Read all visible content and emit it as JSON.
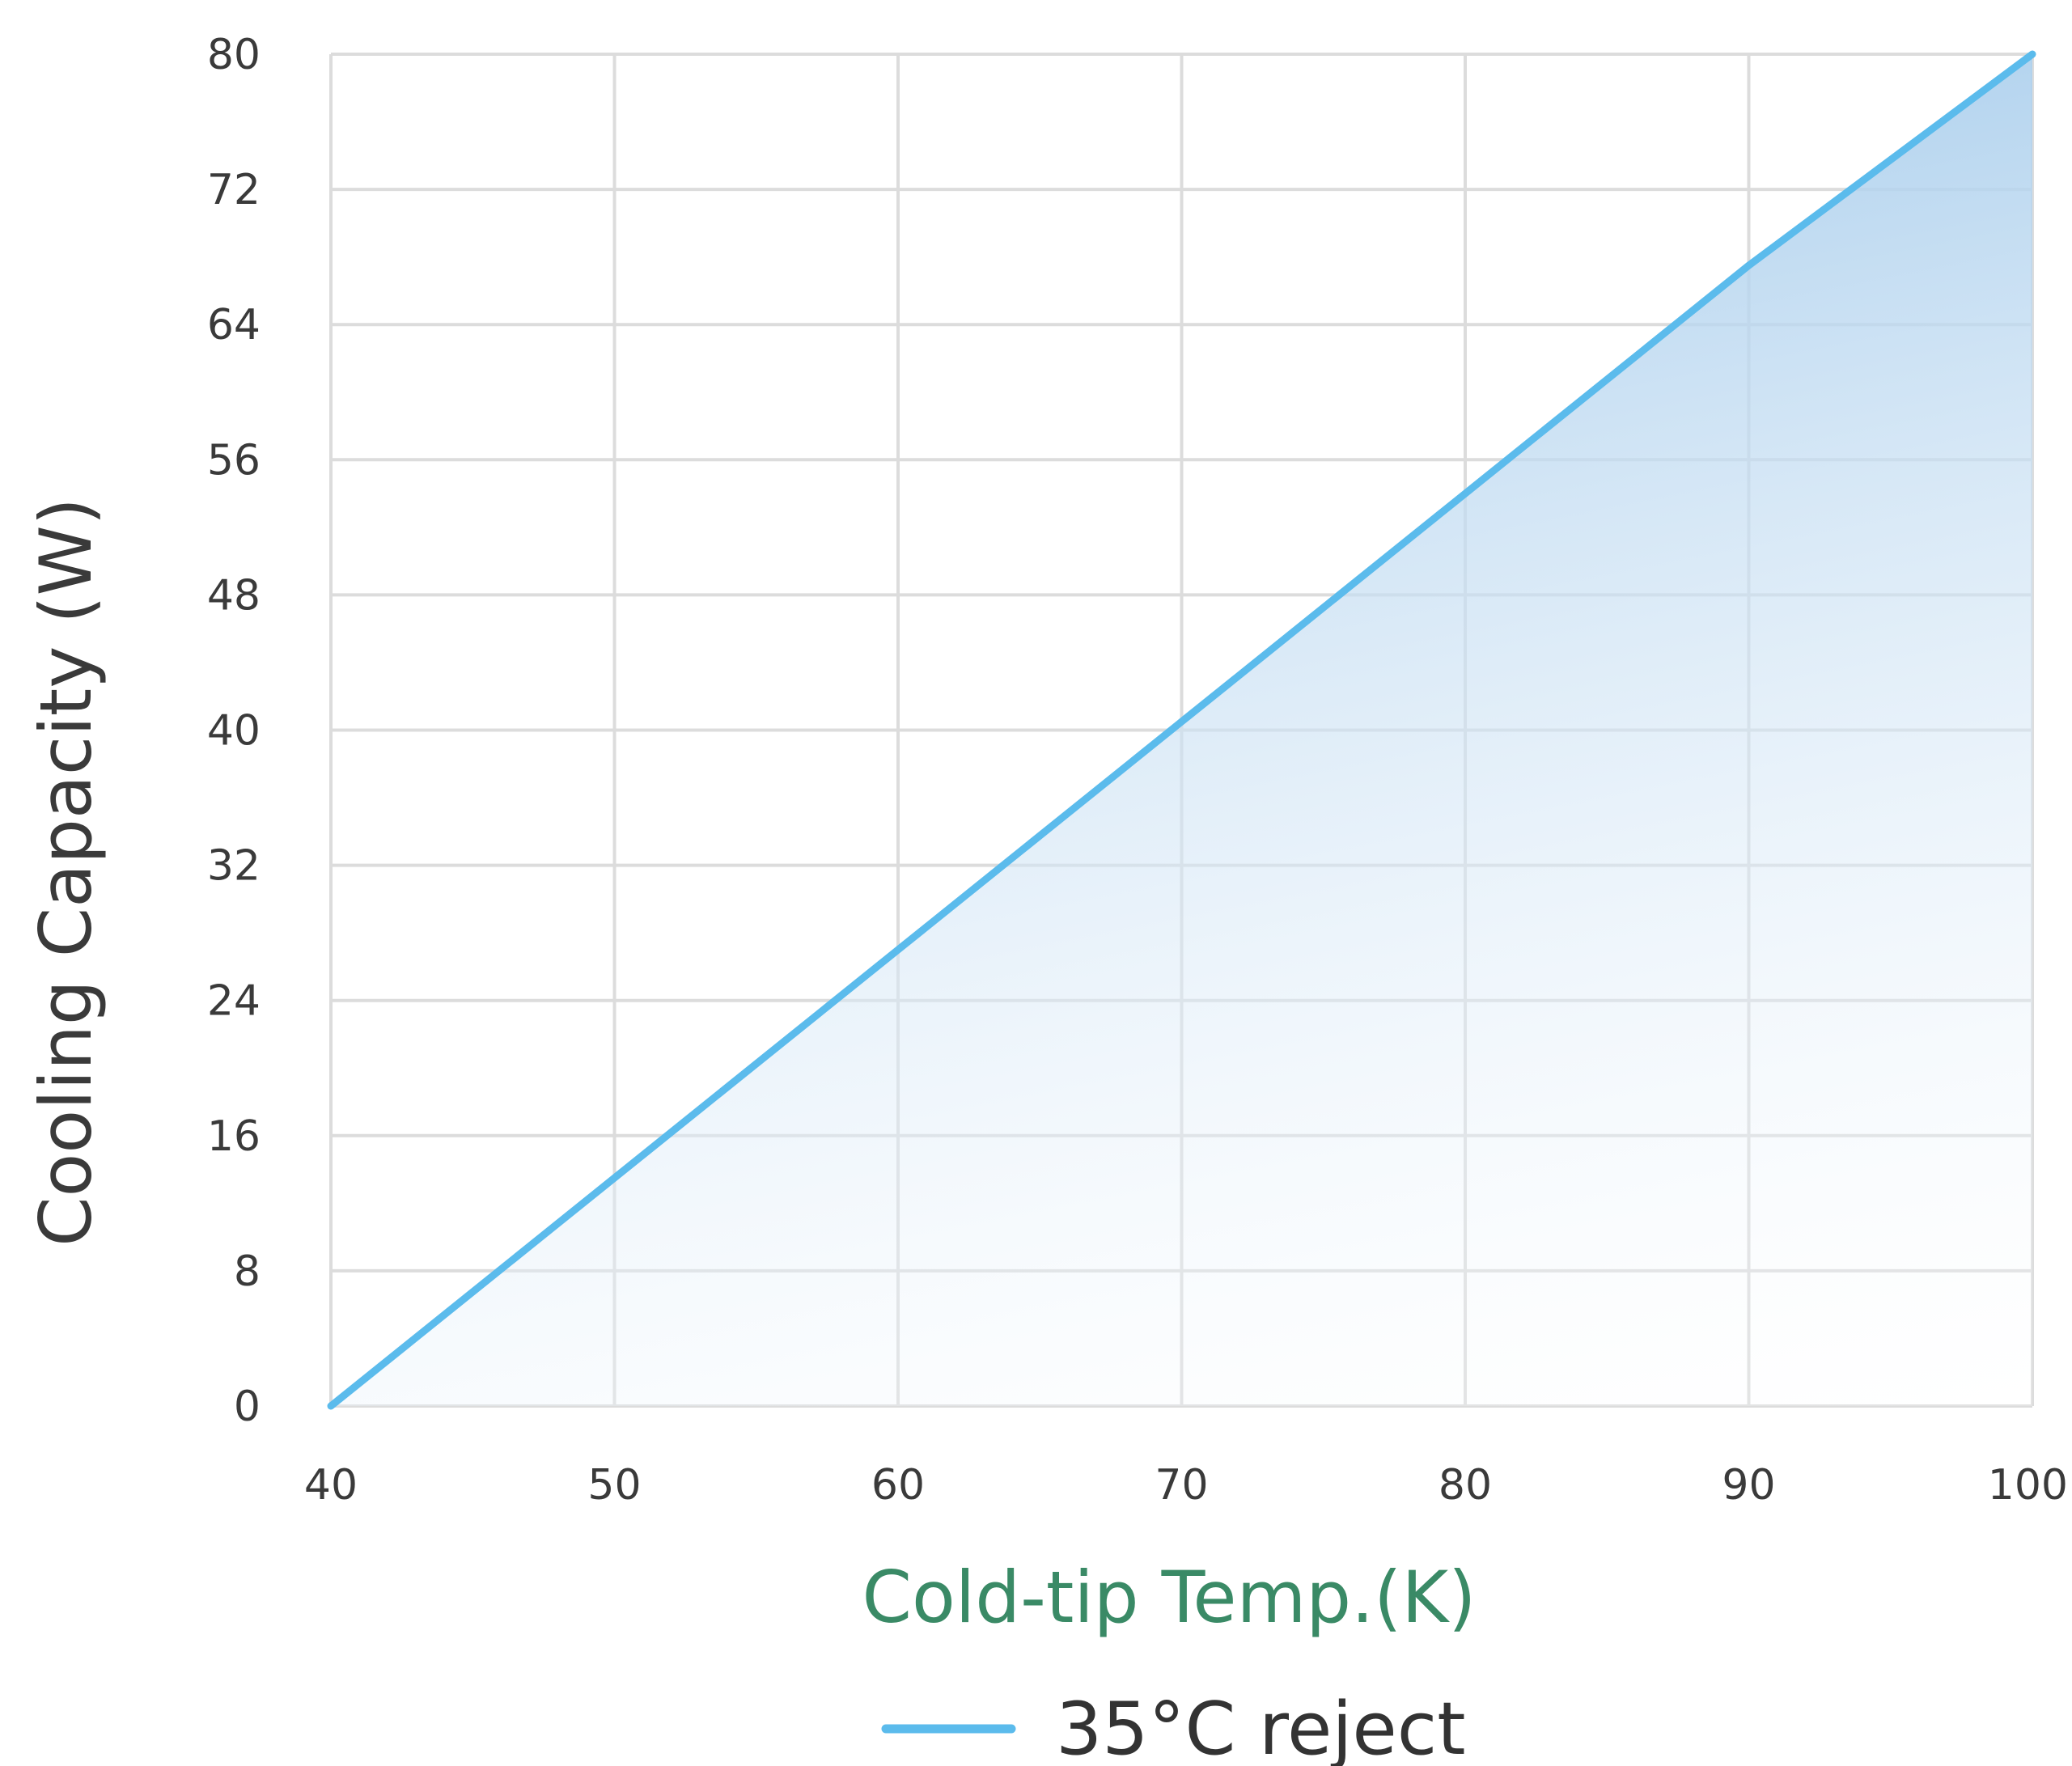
{
  "chart_data": {
    "type": "area",
    "xlabel": "Cold-tip Temp.(K)",
    "ylabel": "Cooling Capacity (W)",
    "xlim": [
      40,
      100
    ],
    "ylim": [
      0,
      80
    ],
    "x_ticks": [
      "40",
      "50",
      "60",
      "70",
      "80",
      "90",
      "100"
    ],
    "y_ticks": [
      "0",
      "8",
      "16",
      "24",
      "32",
      "40",
      "48",
      "56",
      "64",
      "72",
      "80"
    ],
    "grid": true,
    "legend_position": "bottom-center",
    "series": [
      {
        "name": "35°C reject",
        "color": "#5bbbec",
        "fill_color": "#a8cdec",
        "x": [
          40,
          50,
          60,
          70,
          80,
          90,
          100
        ],
        "y": [
          0,
          13.5,
          27,
          40.5,
          54,
          67.5,
          80
        ]
      }
    ]
  }
}
